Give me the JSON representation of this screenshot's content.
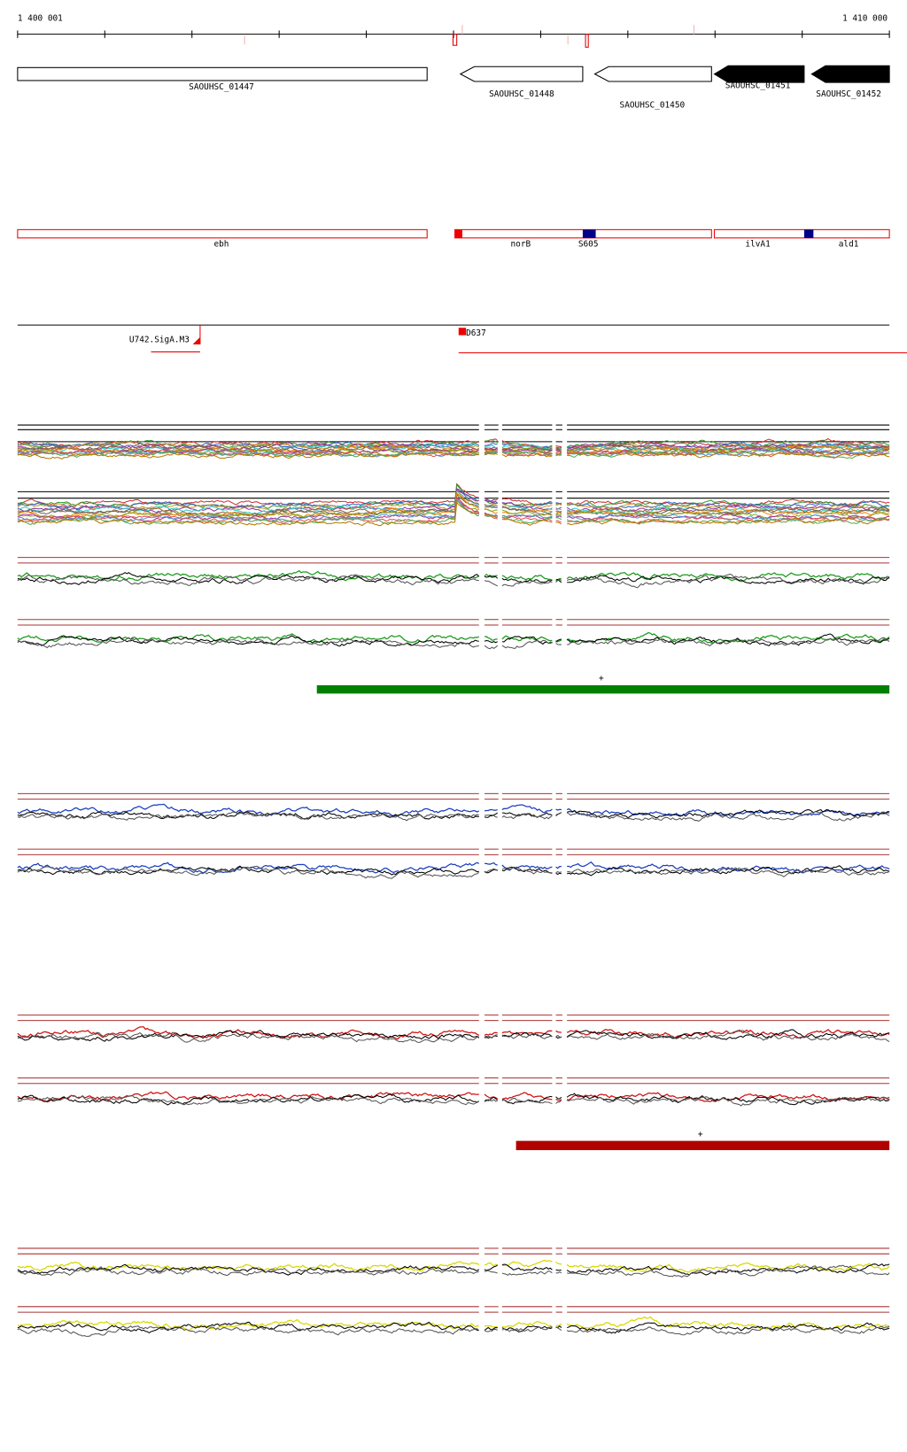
{
  "ruler": {
    "start": "1 400 001",
    "end": "1 410 000"
  },
  "genes": [
    "SAOUHSC_01447",
    "SAOUHSC_01448",
    "SAOUHSC_01450",
    "SAOUHSC_01451",
    "SAOUHSC_01452"
  ],
  "features": [
    "ebh",
    "norB",
    "S605",
    "ilvA1",
    "ald1"
  ],
  "regions": [
    "U742.SigA.M3",
    "D637"
  ],
  "markers": [
    "+",
    "+"
  ]
}
